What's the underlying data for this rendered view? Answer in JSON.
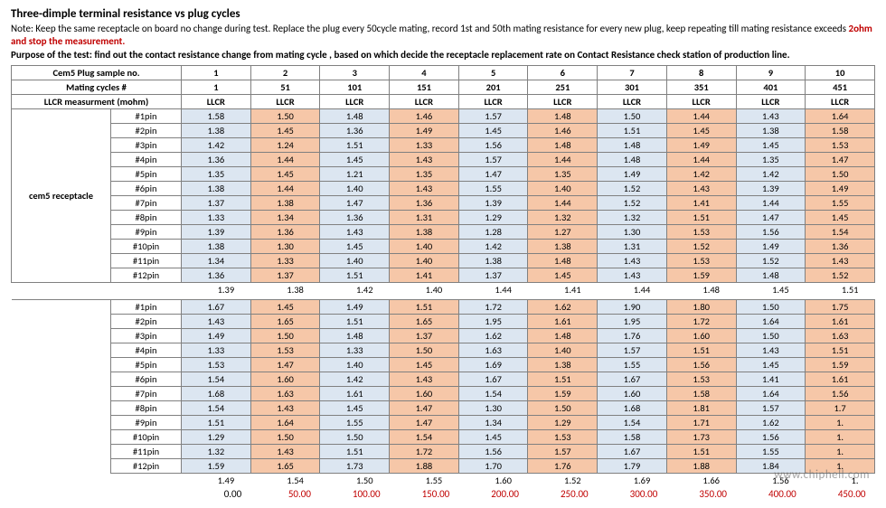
{
  "header": {
    "title": "Three-dimple terminal resistance vs plug cycles",
    "note_prefix": "Note: Keep the same receptacle on board no change during test. Replace the plug every 50cycle mating, record 1st and 50th mating resistance for every new plug, keep repeating till mating resistance exceeds ",
    "note_red": "2ohm and stop the measurement.",
    "purpose": "Purpose of the test: find out the contact resistance change from mating cycle , based on which decide the receptacle replacement rate on Contact Resistance check station of production line."
  },
  "table": {
    "row1_label": "Cem5 Plug sample no.",
    "row2_label": "Mating cycles #",
    "row3_label": "LLCR measurment  (mohm)",
    "receptacle_label": "cem5 receptacle",
    "sample_nos": [
      "1",
      "2",
      "3",
      "4",
      "5",
      "6",
      "7",
      "8",
      "9",
      "10"
    ],
    "mating_cycles": [
      "1",
      "51",
      "101",
      "151",
      "201",
      "251",
      "301",
      "351",
      "401",
      "451"
    ],
    "llcr_labels": [
      "LLCR",
      "LLCR",
      "LLCR",
      "LLCR",
      "LLCR",
      "LLCR",
      "LLCR",
      "LLCR",
      "LLCR",
      "LLCR"
    ],
    "pins": [
      "#1pin",
      "#2pin",
      "#3pin",
      "#4pin",
      "#5pin",
      "#6pin",
      "#7pin",
      "#8pin",
      "#9pin",
      "#10pin",
      "#11pin",
      "#12pin"
    ],
    "blockA": [
      [
        "1.58",
        "1.50",
        "1.48",
        "1.46",
        "1.57",
        "1.48",
        "1.50",
        "1.44",
        "1.43",
        "1.64"
      ],
      [
        "1.38",
        "1.45",
        "1.36",
        "1.49",
        "1.45",
        "1.46",
        "1.51",
        "1.45",
        "1.38",
        "1.58"
      ],
      [
        "1.42",
        "1.24",
        "1.51",
        "1.33",
        "1.56",
        "1.48",
        "1.48",
        "1.49",
        "1.45",
        "1.53"
      ],
      [
        "1.36",
        "1.44",
        "1.45",
        "1.43",
        "1.57",
        "1.44",
        "1.48",
        "1.44",
        "1.35",
        "1.47"
      ],
      [
        "1.35",
        "1.45",
        "1.21",
        "1.35",
        "1.47",
        "1.35",
        "1.49",
        "1.42",
        "1.42",
        "1.50"
      ],
      [
        "1.38",
        "1.44",
        "1.40",
        "1.43",
        "1.55",
        "1.40",
        "1.52",
        "1.43",
        "1.39",
        "1.49"
      ],
      [
        "1.37",
        "1.38",
        "1.47",
        "1.36",
        "1.39",
        "1.44",
        "1.52",
        "1.41",
        "1.44",
        "1.55"
      ],
      [
        "1.33",
        "1.34",
        "1.36",
        "1.31",
        "1.29",
        "1.32",
        "1.32",
        "1.51",
        "1.47",
        "1.45"
      ],
      [
        "1.39",
        "1.36",
        "1.43",
        "1.38",
        "1.28",
        "1.27",
        "1.30",
        "1.53",
        "1.56",
        "1.54"
      ],
      [
        "1.38",
        "1.30",
        "1.45",
        "1.40",
        "1.42",
        "1.38",
        "1.31",
        "1.52",
        "1.49",
        "1.36"
      ],
      [
        "1.34",
        "1.33",
        "1.40",
        "1.40",
        "1.38",
        "1.48",
        "1.43",
        "1.53",
        "1.52",
        "1.43"
      ],
      [
        "1.36",
        "1.37",
        "1.51",
        "1.41",
        "1.37",
        "1.45",
        "1.43",
        "1.59",
        "1.48",
        "1.52"
      ]
    ],
    "avgA": [
      "1.39",
      "1.38",
      "1.42",
      "1.40",
      "1.44",
      "1.41",
      "1.44",
      "1.48",
      "1.45",
      "1.51"
    ],
    "blockB": [
      [
        "1.67",
        "1.45",
        "1.49",
        "1.51",
        "1.72",
        "1.62",
        "1.90",
        "1.80",
        "1.50",
        "1.75"
      ],
      [
        "1.43",
        "1.65",
        "1.51",
        "1.65",
        "1.95",
        "1.61",
        "1.95",
        "1.72",
        "1.64",
        "1.61"
      ],
      [
        "1.49",
        "1.50",
        "1.48",
        "1.37",
        "1.62",
        "1.48",
        "1.76",
        "1.60",
        "1.50",
        "1.63"
      ],
      [
        "1.33",
        "1.53",
        "1.33",
        "1.50",
        "1.63",
        "1.40",
        "1.57",
        "1.51",
        "1.43",
        "1.51"
      ],
      [
        "1.53",
        "1.47",
        "1.40",
        "1.45",
        "1.69",
        "1.38",
        "1.55",
        "1.56",
        "1.45",
        "1.59"
      ],
      [
        "1.54",
        "1.60",
        "1.42",
        "1.43",
        "1.67",
        "1.51",
        "1.67",
        "1.53",
        "1.41",
        "1.61"
      ],
      [
        "1.68",
        "1.63",
        "1.61",
        "1.60",
        "1.54",
        "1.59",
        "1.60",
        "1.58",
        "1.64",
        "1.56"
      ],
      [
        "1.54",
        "1.43",
        "1.45",
        "1.47",
        "1.30",
        "1.50",
        "1.68",
        "1.81",
        "1.57",
        "1.7"
      ],
      [
        "1.51",
        "1.64",
        "1.55",
        "1.47",
        "1.34",
        "1.29",
        "1.54",
        "1.71",
        "1.62",
        "1."
      ],
      [
        "1.29",
        "1.50",
        "1.50",
        "1.54",
        "1.45",
        "1.53",
        "1.58",
        "1.73",
        "1.56",
        "1."
      ],
      [
        "1.32",
        "1.43",
        "1.51",
        "1.72",
        "1.56",
        "1.57",
        "1.67",
        "1.51",
        "1.55",
        "1."
      ],
      [
        "1.59",
        "1.65",
        "1.73",
        "1.88",
        "1.70",
        "1.76",
        "1.79",
        "1.88",
        "1.84",
        "1."
      ]
    ],
    "avgB": [
      "1.49",
      "1.54",
      "1.50",
      "1.55",
      "1.60",
      "1.52",
      "1.69",
      "1.66",
      "1.56",
      "1."
    ],
    "xaxis": [
      "0.00",
      "50.00",
      "100.00",
      "150.00",
      "200.00",
      "250.00",
      "300.00",
      "350.00",
      "400.00",
      "450.00"
    ],
    "colors": {
      "blue": "#dce6f1",
      "orange": "#f6c7a8"
    },
    "altA": {
      "r1": [
        0,
        1,
        0,
        1,
        0,
        1,
        0,
        1,
        0,
        1
      ],
      "r4": [
        0,
        1,
        0,
        1,
        0,
        1,
        0,
        1,
        0,
        1
      ],
      "r7": [
        0,
        1,
        0,
        1,
        0,
        1,
        0,
        1,
        0,
        1
      ],
      "r10": [
        0,
        1,
        0,
        1,
        0,
        1,
        0,
        1,
        0,
        1
      ]
    }
  },
  "watermark": "www.chiphell.com"
}
